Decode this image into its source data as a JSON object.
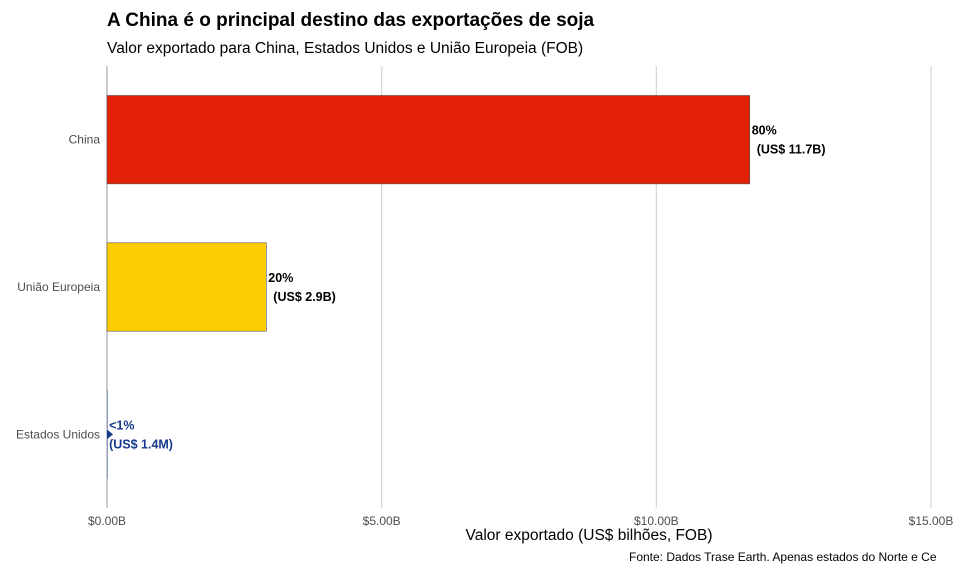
{
  "chart_data": {
    "type": "bar",
    "orientation": "horizontal",
    "title": "A China é o principal destino das exportações de soja",
    "subtitle": "Valor exportado para China, Estados Unidos e União Europeia (FOB)",
    "xlabel": "Valor exportado (US$ bilhões, FOB)",
    "ylabel": "",
    "caption": "Fonte: Dados Trase Earth. Apenas estados do Norte e Ce",
    "categories": [
      "China",
      "União Europeia",
      "Estados Unidos"
    ],
    "values": [
      11.7,
      2.9,
      0.0014
    ],
    "xlim": [
      0,
      15
    ],
    "x_ticks": [
      0,
      5,
      10,
      15
    ],
    "x_tick_labels": [
      "$0.00B",
      "$5.00B",
      "$10.00B",
      "$15.00B"
    ],
    "bar_labels": [
      {
        "pct": "80%",
        "value": "(US$ 11.7B)"
      },
      {
        "pct": "20%",
        "value": "(US$ 2.9B)"
      },
      {
        "pct": "<1%",
        "value": "(US$ 1.4M)"
      }
    ],
    "colors": [
      "#e32106",
      "#fdcc01",
      "#173b8c"
    ],
    "label_colors": [
      "#000000",
      "#000000",
      "#173b8c"
    ],
    "grid": "vertical major gridlines",
    "legend": "none"
  }
}
